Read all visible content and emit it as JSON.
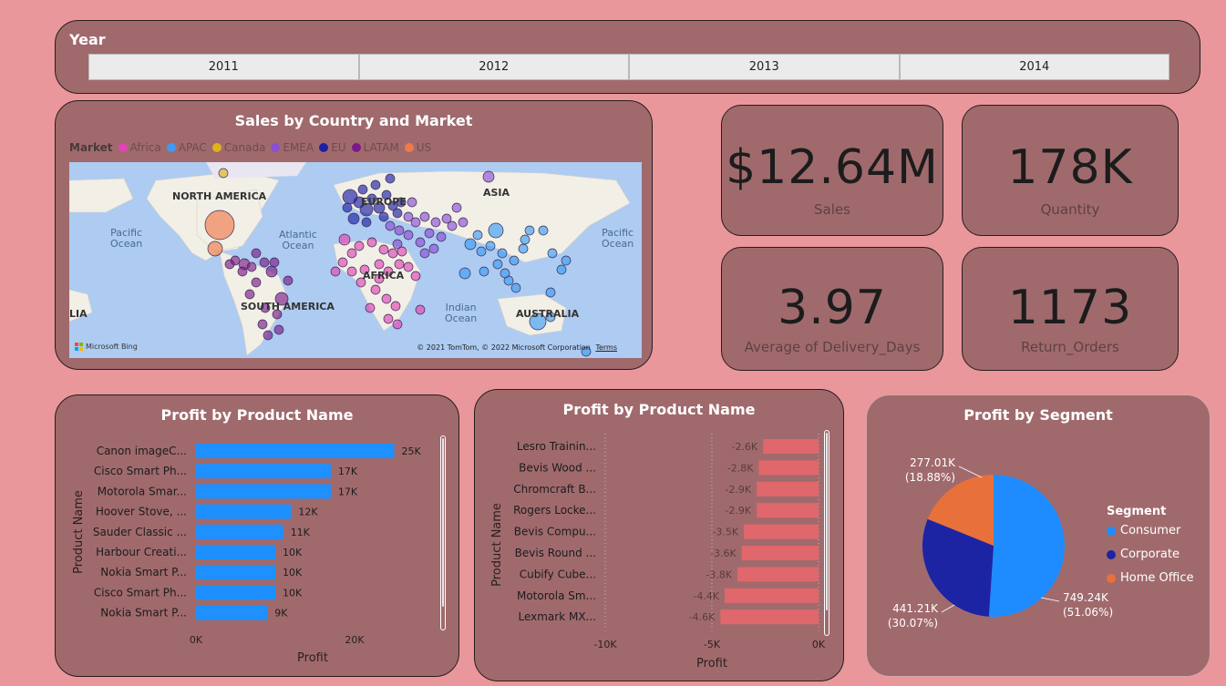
{
  "year_slicer": {
    "title": "Year",
    "options": [
      "2011",
      "2012",
      "2013",
      "2014"
    ]
  },
  "map": {
    "title": "Sales by Country and Market",
    "legend_title": "Market",
    "markets": [
      {
        "name": "Africa",
        "color": "#e044b4"
      },
      {
        "name": "APAC",
        "color": "#3a9cf5"
      },
      {
        "name": "Canada",
        "color": "#e0b21c"
      },
      {
        "name": "EMEA",
        "color": "#8b4fd6"
      },
      {
        "name": "EU",
        "color": "#1d1fa8"
      },
      {
        "name": "LATAM",
        "color": "#7a1a8a"
      },
      {
        "name": "US",
        "color": "#ee7a4a"
      }
    ],
    "labels": {
      "north_america": "NORTH AMERICA",
      "south_america": "SOUTH AMERICA",
      "asia": "ASIA",
      "europe": "EUROPE",
      "africa": "AFRICA",
      "australia": "AUSTRALIA",
      "asia_left": "LIA",
      "pacific_left": "Pacific\nOcean",
      "atlantic": "Atlantic\nOcean",
      "indian": "Indian\nOcean",
      "pacific_right": "Pacific\nOcean"
    },
    "bing": "Microsoft Bing",
    "credit": "© 2021 TomTom, © 2022 Microsoft Corporation",
    "terms": "Terms"
  },
  "kpis": {
    "sales": {
      "value": "$12.64M",
      "label": "Sales"
    },
    "quantity": {
      "value": "178K",
      "label": "Quantity"
    },
    "delivery": {
      "value": "3.97",
      "label": "Average of Delivery_Days"
    },
    "returns": {
      "value": "1173",
      "label": "Return_Orders"
    }
  },
  "chart_data": [
    {
      "type": "bar",
      "title": "Profit by Product Name",
      "ylabel": "Product Name",
      "xlabel": "Profit",
      "categories": [
        "Canon imageC...",
        "Cisco Smart Ph...",
        "Motorola Smar...",
        "Hoover Stove, ...",
        "Sauder Classic ...",
        "Harbour Creati...",
        "Nokia Smart P...",
        "Cisco Smart Ph...",
        "Nokia Smart P..."
      ],
      "values": [
        25000,
        17000,
        17000,
        12000,
        11000,
        10000,
        10000,
        10000,
        9000
      ],
      "value_labels": [
        "25K",
        "17K",
        "17K",
        "12K",
        "11K",
        "10K",
        "10K",
        "10K",
        "9K"
      ],
      "xticks": [
        "0K",
        "20K"
      ],
      "xlim": [
        0,
        30000
      ],
      "color": "#1e90ff"
    },
    {
      "type": "bar",
      "title": "Profit by Product Name",
      "ylabel": "Product Name",
      "xlabel": "Profit",
      "categories": [
        "Lesro Trainin...",
        "Bevis Wood ...",
        "Chromcraft B...",
        "Rogers Locke...",
        "Bevis Compu...",
        "Bevis Round ...",
        "Cubify Cube...",
        "Motorola Sm...",
        "Lexmark MX..."
      ],
      "values": [
        -2600,
        -2800,
        -2900,
        -2900,
        -3500,
        -3600,
        -3800,
        -4400,
        -4600
      ],
      "value_labels": [
        "-2.6K",
        "-2.8K",
        "-2.9K",
        "-2.9K",
        "-3.5K",
        "-3.6K",
        "-3.8K",
        "-4.4K",
        "-4.6K"
      ],
      "xticks": [
        "-10K",
        "-5K",
        "0K"
      ],
      "xlim": [
        -10000,
        0
      ],
      "color": "#e0676b"
    },
    {
      "type": "pie",
      "title": "Profit by Segment",
      "legend_title": "Segment",
      "legend_position": "right",
      "series": [
        {
          "name": "Consumer",
          "value": 749.24,
          "label": "749.24K",
          "pct": "(51.06%)",
          "color": "#1e8cff"
        },
        {
          "name": "Corporate",
          "value": 441.21,
          "label": "441.21K",
          "pct": "(30.07%)",
          "color": "#1d24a3"
        },
        {
          "name": "Home Office",
          "value": 277.01,
          "label": "277.01K",
          "pct": "(18.88%)",
          "color": "#e8703a"
        }
      ]
    }
  ]
}
